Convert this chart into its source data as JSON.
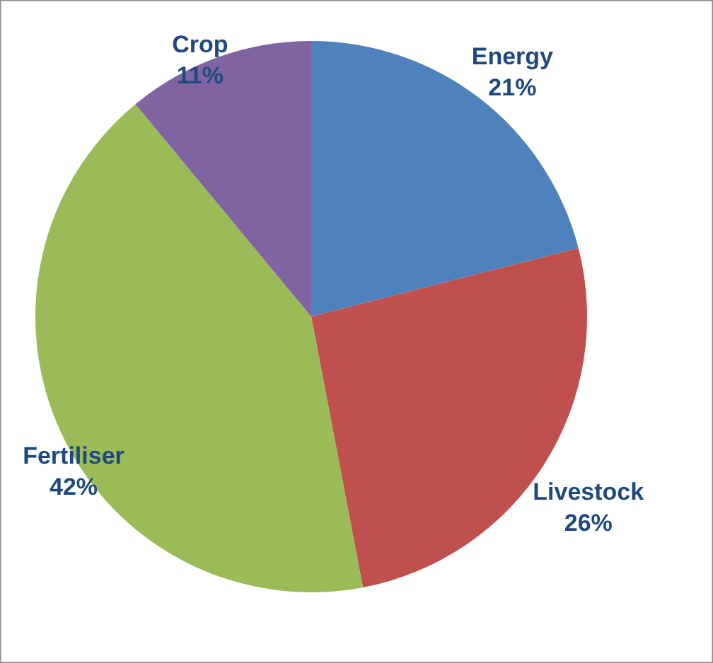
{
  "chart_data": {
    "type": "pie",
    "categories": [
      "Energy",
      "Livestock",
      "Fertiliser",
      "Crop"
    ],
    "values": [
      21,
      26,
      42,
      11
    ],
    "value_labels": [
      "21%",
      "26%",
      "42%",
      "11%"
    ],
    "colors": [
      "#4f81bd",
      "#c0504d",
      "#9bbb59",
      "#8064a2"
    ]
  }
}
